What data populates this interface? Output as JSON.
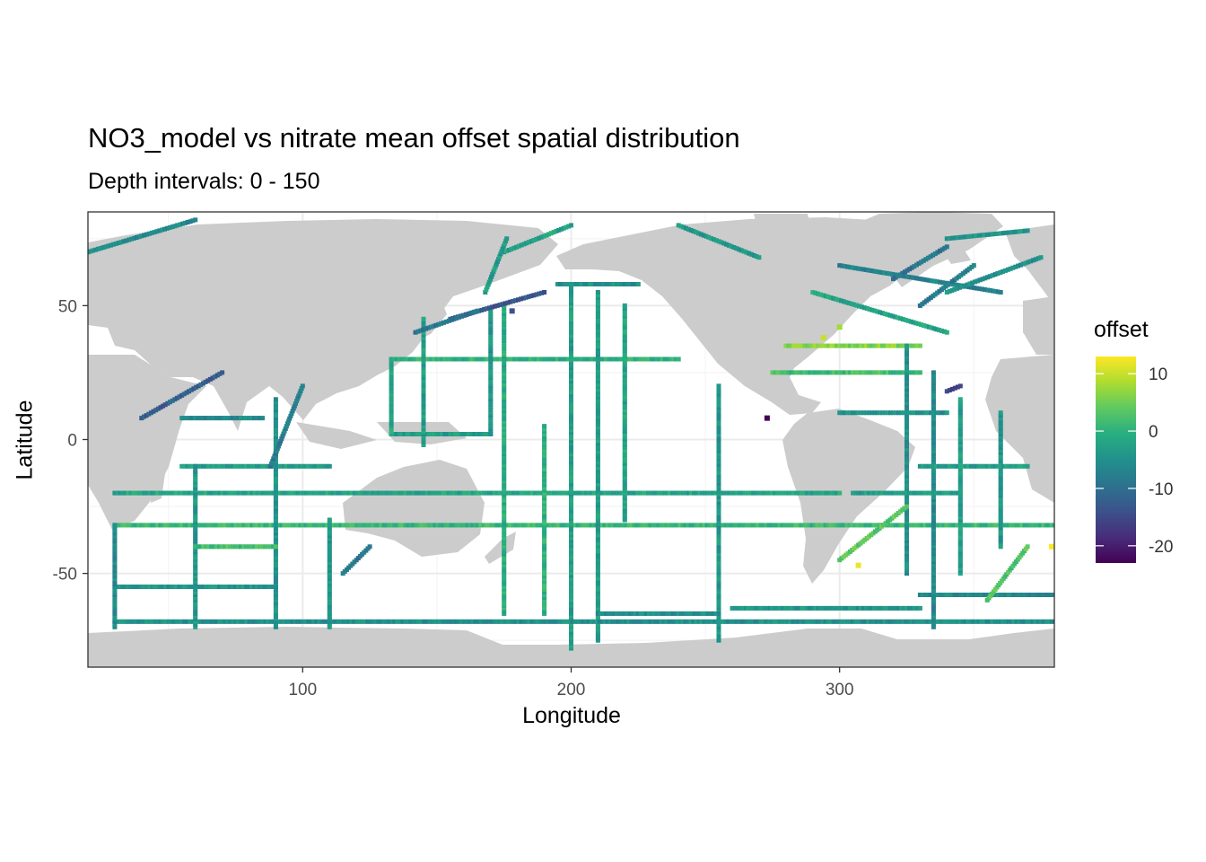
{
  "chart_data": {
    "type": "heatmap",
    "title": "NO3_model vs nitrate mean offset spatial distribution",
    "subtitle": "Depth intervals: 0 - 150",
    "xlabel": "Longitude",
    "ylabel": "Latitude",
    "xlim": [
      20,
      380
    ],
    "ylim": [
      -85,
      85
    ],
    "x_ticks": [
      100,
      200,
      300
    ],
    "y_ticks": [
      -50,
      0,
      50
    ],
    "grid": true,
    "legend": {
      "title": "offset",
      "position": "right",
      "ticks": [
        10,
        0,
        -10,
        -20
      ],
      "range": [
        -23,
        13
      ],
      "colormap": "viridis"
    },
    "land_color": "#cccccc",
    "tracks": [
      {
        "lon": [
          133,
          240
        ],
        "lat": [
          30,
          30
        ],
        "offset": 0
      },
      {
        "lon": [
          133,
          170
        ],
        "lat": [
          2,
          2
        ],
        "offset": -3
      },
      {
        "lon": [
          133,
          133
        ],
        "lat": [
          2,
          30
        ],
        "offset": -2
      },
      {
        "lon": [
          170,
          170
        ],
        "lat": [
          2,
          48
        ],
        "offset": -4
      },
      {
        "lon": [
          145,
          145
        ],
        "lat": [
          -2,
          45
        ],
        "offset": -3
      },
      {
        "lon": [
          30,
          380
        ],
        "lat": [
          -32,
          -32
        ],
        "offset": 1
      },
      {
        "lon": [
          30,
          300
        ],
        "lat": [
          -20,
          -20
        ],
        "offset": -2
      },
      {
        "lon": [
          55,
          110
        ],
        "lat": [
          -10,
          -10
        ],
        "offset": -3
      },
      {
        "lon": [
          200,
          200
        ],
        "lat": [
          -78,
          58
        ],
        "offset": -3
      },
      {
        "lon": [
          210,
          210
        ],
        "lat": [
          -75,
          55
        ],
        "offset": -3
      },
      {
        "lon": [
          220,
          220
        ],
        "lat": [
          -30,
          50
        ],
        "offset": -2
      },
      {
        "lon": [
          255,
          255
        ],
        "lat": [
          -75,
          20
        ],
        "offset": -4
      },
      {
        "lon": [
          190,
          190
        ],
        "lat": [
          -65,
          5
        ],
        "offset": 0
      },
      {
        "lon": [
          175,
          175
        ],
        "lat": [
          -65,
          50
        ],
        "offset": -1
      },
      {
        "lon": [
          155,
          190
        ],
        "lat": [
          45,
          55
        ],
        "offset": -13
      },
      {
        "lon": [
          142,
          165
        ],
        "lat": [
          40,
          48
        ],
        "offset": -9
      },
      {
        "lon": [
          210,
          255
        ],
        "lat": [
          -65,
          -65
        ],
        "offset": -5
      },
      {
        "lon": [
          260,
          330
        ],
        "lat": [
          -63,
          -63
        ],
        "offset": -4
      },
      {
        "lon": [
          330,
          380
        ],
        "lat": [
          -58,
          -58
        ],
        "offset": -6
      },
      {
        "lon": [
          30,
          380
        ],
        "lat": [
          -68,
          -68
        ],
        "offset": -5
      },
      {
        "lon": [
          30,
          90
        ],
        "lat": [
          -55,
          -55
        ],
        "offset": -4
      },
      {
        "lon": [
          30,
          30
        ],
        "lat": [
          -70,
          -32
        ],
        "offset": -6
      },
      {
        "lon": [
          60,
          60
        ],
        "lat": [
          -70,
          -10
        ],
        "offset": -4
      },
      {
        "lon": [
          90,
          90
        ],
        "lat": [
          -70,
          15
        ],
        "offset": -5
      },
      {
        "lon": [
          110,
          110
        ],
        "lat": [
          -70,
          -30
        ],
        "offset": -4
      },
      {
        "lon": [
          115,
          125
        ],
        "lat": [
          -50,
          -40
        ],
        "offset": -9
      },
      {
        "lon": [
          40,
          70
        ],
        "lat": [
          8,
          25
        ],
        "offset": -12
      },
      {
        "lon": [
          55,
          85
        ],
        "lat": [
          8,
          8
        ],
        "offset": -6
      },
      {
        "lon": [
          88,
          100
        ],
        "lat": [
          -10,
          20
        ],
        "offset": -8
      },
      {
        "lon": [
          60,
          90
        ],
        "lat": [
          -40,
          -40
        ],
        "offset": 2
      },
      {
        "lon": [
          275,
          330
        ],
        "lat": [
          25,
          25
        ],
        "offset": 2
      },
      {
        "lon": [
          280,
          330
        ],
        "lat": [
          35,
          35
        ],
        "offset": 6
      },
      {
        "lon": [
          290,
          340
        ],
        "lat": [
          55,
          40
        ],
        "offset": -2
      },
      {
        "lon": [
          300,
          360
        ],
        "lat": [
          65,
          55
        ],
        "offset": -7
      },
      {
        "lon": [
          320,
          340
        ],
        "lat": [
          60,
          72
        ],
        "offset": -9
      },
      {
        "lon": [
          330,
          350
        ],
        "lat": [
          50,
          65
        ],
        "offset": -8
      },
      {
        "lon": [
          340,
          375
        ],
        "lat": [
          55,
          68
        ],
        "offset": -5
      },
      {
        "lon": [
          340,
          370
        ],
        "lat": [
          75,
          78
        ],
        "offset": -4
      },
      {
        "lon": [
          325,
          325
        ],
        "lat": [
          -50,
          35
        ],
        "offset": -5
      },
      {
        "lon": [
          335,
          335
        ],
        "lat": [
          -70,
          25
        ],
        "offset": -6
      },
      {
        "lon": [
          345,
          345
        ],
        "lat": [
          -50,
          15
        ],
        "offset": -3
      },
      {
        "lon": [
          360,
          360
        ],
        "lat": [
          -40,
          10
        ],
        "offset": -4
      },
      {
        "lon": [
          305,
          345
        ],
        "lat": [
          -20,
          -20
        ],
        "offset": -3
      },
      {
        "lon": [
          330,
          370
        ],
        "lat": [
          -10,
          -10
        ],
        "offset": -3
      },
      {
        "lon": [
          300,
          340
        ],
        "lat": [
          10,
          10
        ],
        "offset": -5
      },
      {
        "lon": [
          300,
          325
        ],
        "lat": [
          -45,
          -25
        ],
        "offset": 4
      },
      {
        "lon": [
          355,
          370
        ],
        "lat": [
          -60,
          -40
        ],
        "offset": 3
      },
      {
        "lon": [
          340,
          345
        ],
        "lat": [
          18,
          20
        ],
        "offset": -15
      },
      {
        "lon": [
          20,
          60
        ],
        "lat": [
          70,
          82
        ],
        "offset": -6
      },
      {
        "lon": [
          168,
          176
        ],
        "lat": [
          55,
          75
        ],
        "offset": -3
      },
      {
        "lon": [
          175,
          200
        ],
        "lat": [
          70,
          80
        ],
        "offset": -2
      },
      {
        "lon": [
          195,
          225
        ],
        "lat": [
          58,
          58
        ],
        "offset": -5
      },
      {
        "lon": [
          240,
          270
        ],
        "lat": [
          80,
          68
        ],
        "offset": -4
      }
    ],
    "points": [
      {
        "lon": 273,
        "lat": 8,
        "offset": -23
      },
      {
        "lon": 307,
        "lat": -47,
        "offset": 12
      },
      {
        "lon": 379,
        "lat": -40,
        "offset": 13
      },
      {
        "lon": 294,
        "lat": 38,
        "offset": 10
      },
      {
        "lon": 300,
        "lat": 42,
        "offset": 8
      },
      {
        "lon": 178,
        "lat": 48,
        "offset": -14
      }
    ]
  }
}
